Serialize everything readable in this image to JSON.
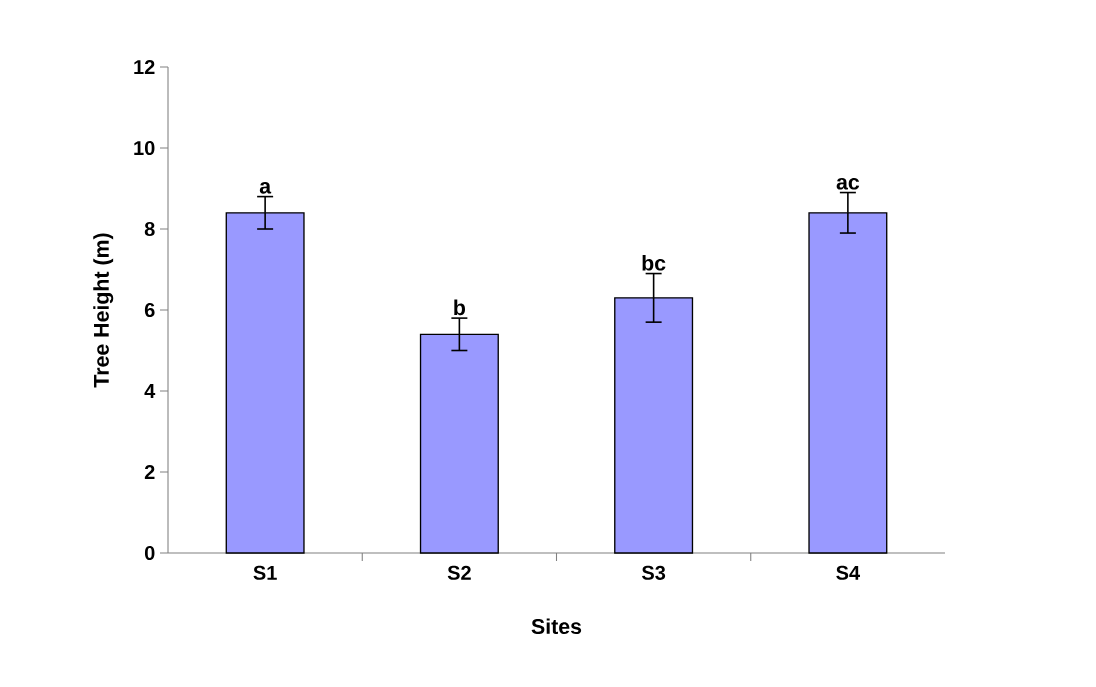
{
  "chart_data": {
    "type": "bar",
    "xlabel": "Sites",
    "ylabel": "Tree Height (m)",
    "categories": [
      "S1",
      "S2",
      "S3",
      "S4"
    ],
    "values": [
      8.4,
      5.4,
      6.3,
      8.4
    ],
    "errors": [
      0.4,
      0.4,
      0.6,
      0.5
    ],
    "color": "#9999ff",
    "ylim": [
      0,
      12
    ],
    "yticks": [
      0,
      2,
      4,
      6,
      8,
      10,
      12
    ],
    "grid": false,
    "annotations": [
      "a",
      "b",
      "bc",
      "ac"
    ]
  }
}
